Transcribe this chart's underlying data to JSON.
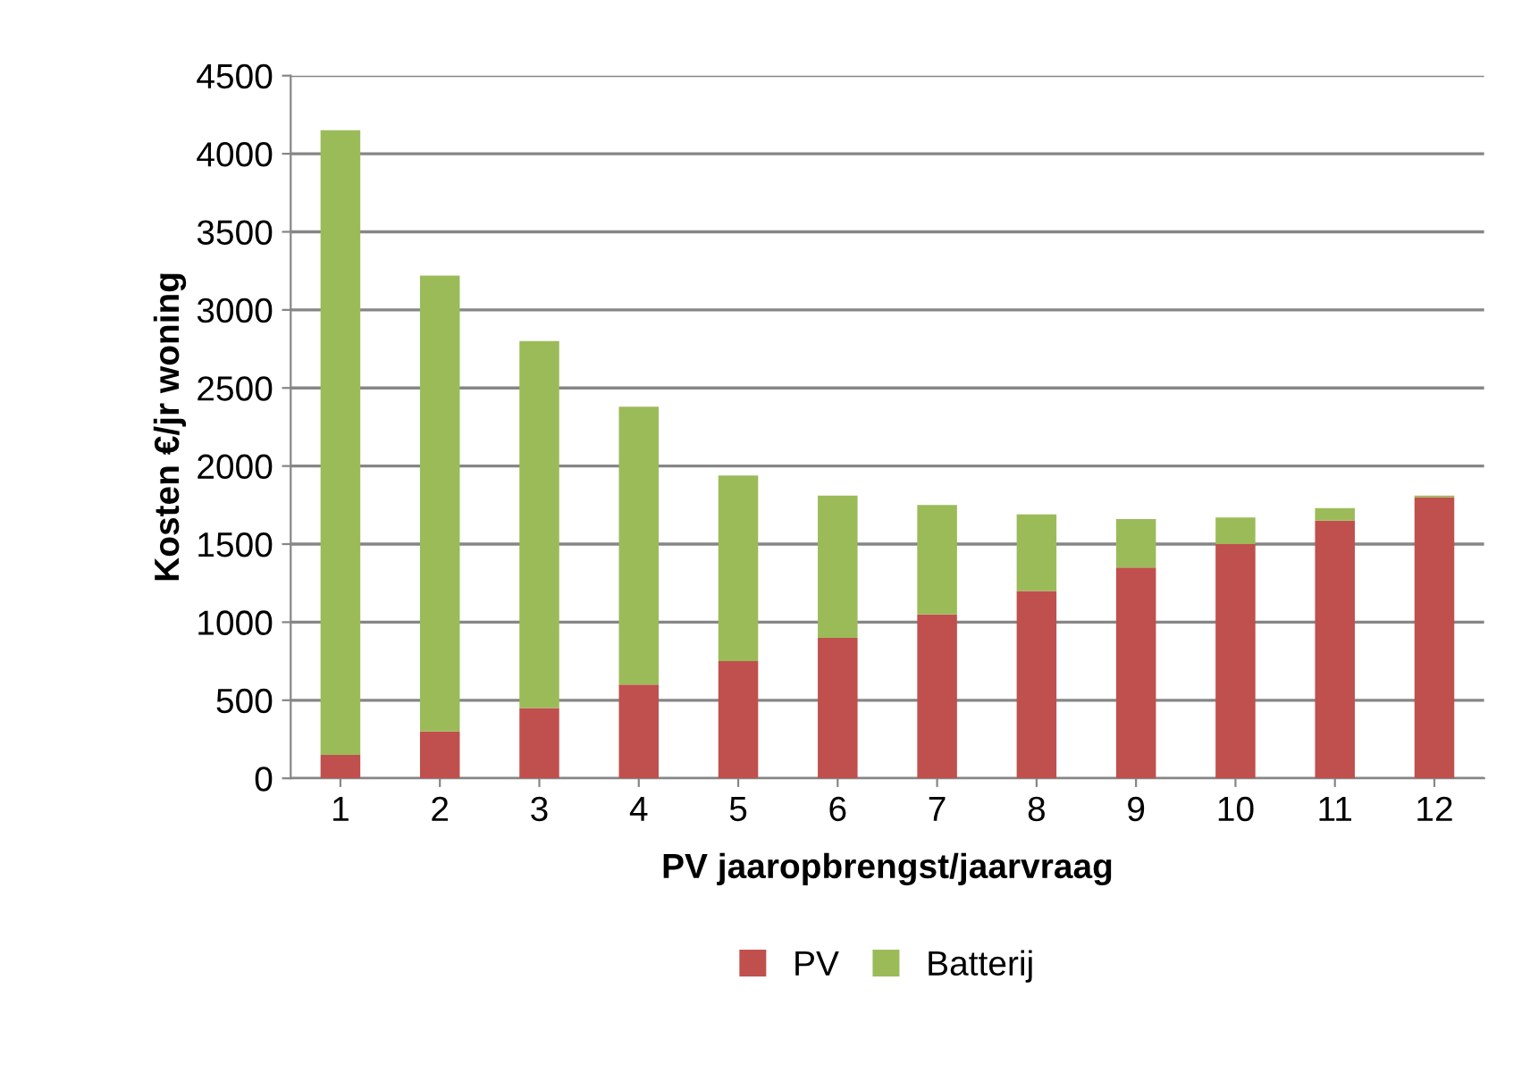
{
  "chart_data": {
    "type": "bar",
    "stacked": true,
    "xlabel": "PV jaaropbrengst/jaarvraag",
    "ylabel": "Kosten €/jr woning",
    "categories": [
      "1",
      "2",
      "3",
      "4",
      "5",
      "6",
      "7",
      "8",
      "9",
      "10",
      "11",
      "12"
    ],
    "series": [
      {
        "name": "PV",
        "color": "#c0504d",
        "values": [
          150,
          300,
          450,
          600,
          750,
          900,
          1050,
          1200,
          1350,
          1500,
          1650,
          1800
        ]
      },
      {
        "name": "Batterij",
        "color": "#9bbb59",
        "values": [
          4000,
          2920,
          2350,
          1780,
          1190,
          910,
          700,
          490,
          310,
          170,
          80,
          10
        ]
      }
    ],
    "ylim": [
      0,
      4500
    ],
    "yticks": [
      0,
      500,
      1000,
      1500,
      2000,
      2500,
      3000,
      3500,
      4000,
      4500
    ],
    "grid": "y",
    "legend": "bottom"
  }
}
